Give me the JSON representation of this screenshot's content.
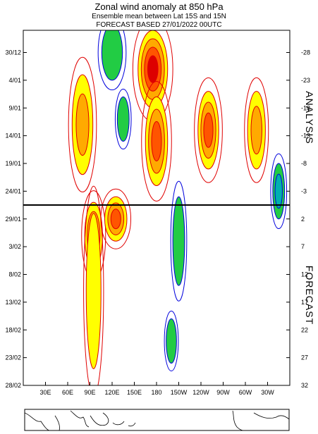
{
  "title_line1": "Zonal wind anomaly at 850 hPa",
  "title_line2": "Ensemble mean between  Lat 15S and 15N",
  "title_line3": "FORECAST  BASED 27/01/2022 00UTC",
  "chart_data": {
    "type": "heatmap",
    "title": "Zonal wind anomaly at 850 hPa",
    "subtitle": "Ensemble mean between  Lat 15S and 15N",
    "x_tick_labels": [
      "30E",
      "60E",
      "90E",
      "120E",
      "150E",
      "180",
      "150W",
      "120W",
      "90W",
      "60W",
      "30W"
    ],
    "x_tick_lon": [
      30,
      60,
      90,
      120,
      150,
      180,
      210,
      240,
      270,
      300,
      330
    ],
    "x_range_lon": [
      0,
      360
    ],
    "y_left_labels": [
      "30/12",
      "4/01",
      "9/01",
      "14/01",
      "19/01",
      "24/01",
      "29/01",
      "3/02",
      "8/02",
      "13/02",
      "18/02",
      "23/02",
      "28/02"
    ],
    "y_right_labels": [
      "-28",
      "-23",
      "-18",
      "-13",
      "-8",
      "-3",
      "2",
      "7",
      "12",
      "17",
      "22",
      "27",
      "32"
    ],
    "y_range_days": [
      -32,
      32
    ],
    "panels": [
      {
        "label": "ANALYSIS",
        "day_range": [
          -32,
          0
        ]
      },
      {
        "label": "FORECAST",
        "day_range": [
          0,
          32
        ]
      }
    ],
    "colors": {
      "positive_1": "#ffff00",
      "positive_2": "#ffaa00",
      "positive_3": "#ff5500",
      "positive_4": "#dd0000",
      "negative_1": "#22cc44",
      "negative_2": "#00b0b0",
      "positive_contour": "#e00000",
      "negative_contour": "#0000dd"
    },
    "features": [
      {
        "sign": "positive",
        "lon": 80,
        "day": -15,
        "rx": 14,
        "ry": 9,
        "level": 2
      },
      {
        "sign": "positive",
        "lon": 175,
        "day": -25,
        "rx": 20,
        "ry": 7,
        "level": 4
      },
      {
        "sign": "positive",
        "lon": 180,
        "day": -12,
        "rx": 15,
        "ry": 8,
        "level": 3
      },
      {
        "sign": "positive",
        "lon": 250,
        "day": -14,
        "rx": 14,
        "ry": 7,
        "level": 3
      },
      {
        "sign": "positive",
        "lon": 315,
        "day": -14,
        "rx": 12,
        "ry": 7,
        "level": 2
      },
      {
        "sign": "positive",
        "lon": 95,
        "day": 5,
        "rx": 12,
        "ry": 6,
        "level": 3
      },
      {
        "sign": "positive",
        "lon": 95,
        "day": 15,
        "rx": 10,
        "ry": 14,
        "level": 1
      },
      {
        "sign": "positive",
        "lon": 125,
        "day": 2,
        "rx": 15,
        "ry": 4,
        "level": 3
      },
      {
        "sign": "negative",
        "lon": 120,
        "day": -28,
        "rx": 14,
        "ry": 5,
        "level": 1
      },
      {
        "sign": "negative",
        "lon": 135,
        "day": -16,
        "rx": 8,
        "ry": 4,
        "level": 1
      },
      {
        "sign": "negative",
        "lon": 210,
        "day": 6,
        "rx": 8,
        "ry": 8,
        "level": 1
      },
      {
        "sign": "negative",
        "lon": 200,
        "day": 24,
        "rx": 7,
        "ry": 4,
        "level": 1
      },
      {
        "sign": "negative",
        "lon": 345,
        "day": -3,
        "rx": 8,
        "ry": 5,
        "level": 2
      }
    ]
  }
}
